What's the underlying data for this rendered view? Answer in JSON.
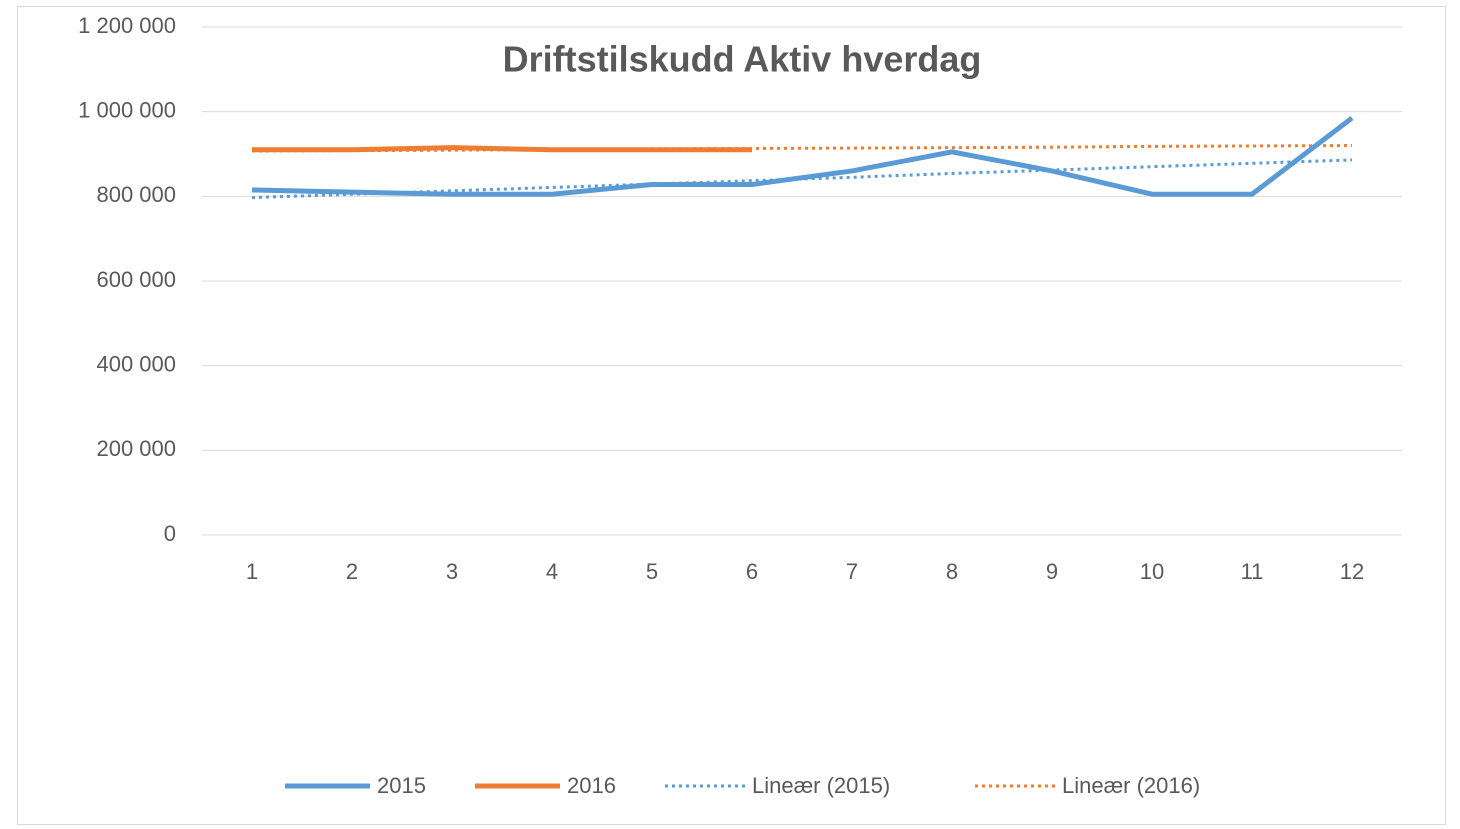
{
  "chart_data": {
    "type": "line",
    "title": "Driftstilskudd Aktiv hverdag",
    "categories": [
      "1",
      "2",
      "3",
      "4",
      "5",
      "6",
      "7",
      "8",
      "9",
      "10",
      "11",
      "12"
    ],
    "series": [
      {
        "name": "2015",
        "color": "#5b9bd5",
        "style": "solid",
        "values": [
          815000,
          810000,
          805000,
          805000,
          828000,
          828000,
          860000,
          905000,
          860000,
          805000,
          805000,
          985000
        ]
      },
      {
        "name": "2016",
        "color": "#ed7d31",
        "style": "solid",
        "values": [
          910000,
          910000,
          915000,
          910000,
          910000,
          910000,
          null,
          null,
          null,
          null,
          null,
          null
        ]
      },
      {
        "name": "Lineær (2015)",
        "color": "#5b9bd5",
        "style": "dotted",
        "values": [
          797000,
          805000,
          813000,
          821000,
          829000,
          837000,
          845000,
          854000,
          862000,
          870000,
          878000,
          886000
        ]
      },
      {
        "name": "Lineær (2016)",
        "color": "#ed7d31",
        "style": "dotted",
        "values": [
          907000,
          908000,
          909000,
          911000,
          912000,
          913000,
          914000,
          915000,
          916000,
          918000,
          919000,
          920000
        ]
      }
    ],
    "ylim": [
      0,
      1200000
    ],
    "yticks": [
      0,
      {
        "value": 200000,
        "label": "200 000"
      },
      {
        "value": 400000,
        "label": "400 000"
      },
      {
        "value": 600000,
        "label": "600 000"
      },
      {
        "value": 800000,
        "label": "800 000"
      },
      {
        "value": 1000000,
        "label": "1 000 000"
      },
      {
        "value": 1200000,
        "label": "1 200 000"
      }
    ],
    "grid": true,
    "legend": "bottom"
  }
}
